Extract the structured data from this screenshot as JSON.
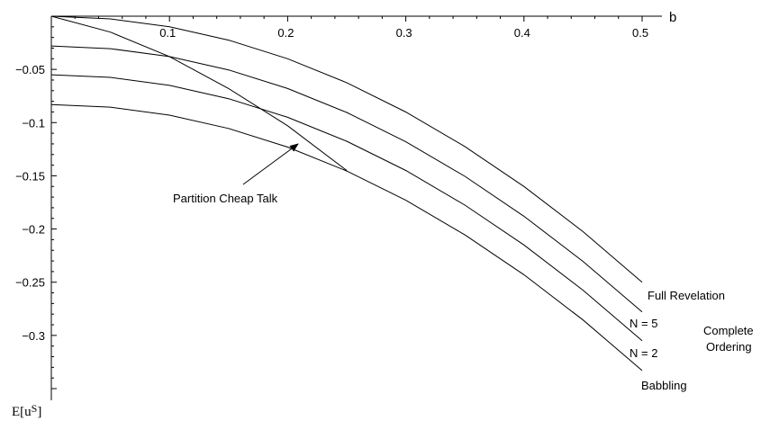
{
  "chart_data": {
    "type": "line",
    "title": "",
    "xlabel": "b",
    "ylabel_base": "E[u",
    "ylabel_sup": "S",
    "ylabel_close": "]",
    "xlim": [
      0,
      0.5
    ],
    "ylim": [
      -0.35,
      0
    ],
    "x_ticks": [
      {
        "value": 0.1,
        "label": "0.1"
      },
      {
        "value": 0.2,
        "label": "0.2"
      },
      {
        "value": 0.3,
        "label": "0.3"
      },
      {
        "value": 0.4,
        "label": "0.4"
      },
      {
        "value": 0.5,
        "label": "0.5"
      }
    ],
    "y_ticks": [
      {
        "value": -0.05,
        "label": "−0.05"
      },
      {
        "value": -0.1,
        "label": "−0.1"
      },
      {
        "value": -0.15,
        "label": "−0.15"
      },
      {
        "value": -0.2,
        "label": "−0.2"
      },
      {
        "value": -0.25,
        "label": "−0.25"
      },
      {
        "value": -0.3,
        "label": "−0.3"
      }
    ],
    "series": [
      {
        "name": "Full Revelation",
        "x": [
          0,
          0.05,
          0.1,
          0.15,
          0.2,
          0.25,
          0.3,
          0.35,
          0.4,
          0.45,
          0.5
        ],
        "y": [
          0,
          -0.0025,
          -0.01,
          -0.0225,
          -0.04,
          -0.0625,
          -0.09,
          -0.1225,
          -0.16,
          -0.2025,
          -0.25
        ]
      },
      {
        "name": "N = 5",
        "x": [
          0,
          0.05,
          0.1,
          0.15,
          0.2,
          0.25,
          0.3,
          0.35,
          0.4,
          0.45,
          0.5
        ],
        "y": [
          -0.028,
          -0.0305,
          -0.038,
          -0.0505,
          -0.068,
          -0.0905,
          -0.118,
          -0.1505,
          -0.188,
          -0.2305,
          -0.278
        ]
      },
      {
        "name": "N = 2",
        "x": [
          0,
          0.05,
          0.1,
          0.15,
          0.2,
          0.25,
          0.3,
          0.35,
          0.4,
          0.45,
          0.5
        ],
        "y": [
          -0.055,
          -0.0575,
          -0.065,
          -0.0775,
          -0.095,
          -0.1175,
          -0.145,
          -0.1775,
          -0.215,
          -0.2575,
          -0.305
        ]
      },
      {
        "name": "Babbling",
        "x": [
          0,
          0.05,
          0.1,
          0.15,
          0.2,
          0.25,
          0.3,
          0.35,
          0.4,
          0.45,
          0.5
        ],
        "y": [
          -0.083,
          -0.0855,
          -0.093,
          -0.1055,
          -0.123,
          -0.1455,
          -0.173,
          -0.2055,
          -0.243,
          -0.2855,
          -0.333
        ]
      },
      {
        "name": "Partition Cheap Talk",
        "x": [
          0,
          0.05,
          0.1,
          0.15,
          0.2,
          0.25
        ],
        "y": [
          0,
          -0.015,
          -0.038,
          -0.068,
          -0.103,
          -0.145
        ]
      }
    ],
    "annotations": [
      {
        "text": "Partition Cheap Talk",
        "points_to": {
          "x": 0.21,
          "y": -0.115
        }
      },
      {
        "text": "Complete",
        "x": 0.51,
        "y": -0.285
      },
      {
        "text": "Ordering",
        "x": 0.51,
        "y": -0.299
      }
    ],
    "grid": false,
    "legend": "none"
  }
}
